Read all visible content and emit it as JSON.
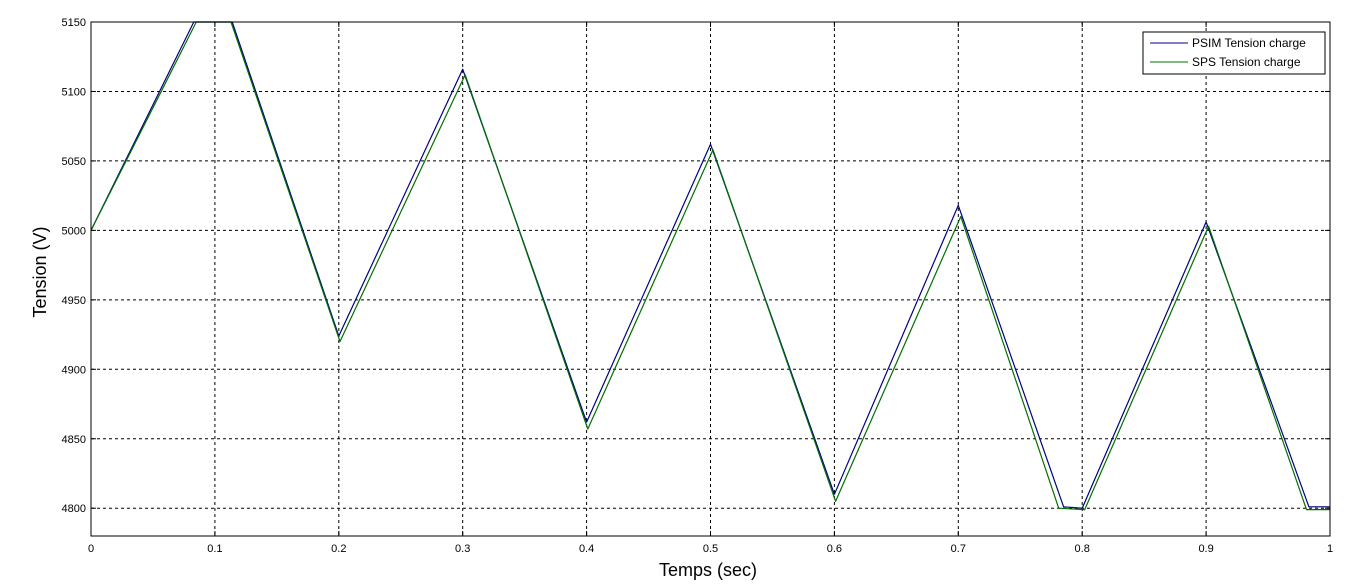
{
  "chart_data": {
    "type": "line",
    "title": "",
    "xlabel": "Temps (sec)",
    "ylabel": "Tension (V)",
    "xlim": [
      0,
      1
    ],
    "ylim": [
      4780,
      5150
    ],
    "xticks": [
      0,
      0.1,
      0.2,
      0.3,
      0.4,
      0.5,
      0.6,
      0.7,
      0.8,
      0.9,
      1
    ],
    "xtick_labels": [
      "0",
      "0.1",
      "0.2",
      "0.3",
      "0.4",
      "0.5",
      "0.6",
      "0.7",
      "0.8",
      "0.9",
      "1"
    ],
    "yticks": [
      4800,
      4850,
      4900,
      4950,
      5000,
      5050,
      5100,
      5150
    ],
    "ytick_labels": [
      "4800",
      "4850",
      "4900",
      "4950",
      "5000",
      "5050",
      "5100",
      "5150"
    ],
    "grid": true,
    "legend_position": "top-right",
    "series": [
      {
        "name": "PSIM Tension charge",
        "color": "#000080",
        "x": [
          0,
          0.083,
          0.114,
          0.2,
          0.3,
          0.4,
          0.5,
          0.6,
          0.7,
          0.785,
          0.8,
          0.9,
          0.983,
          1.0
        ],
        "y": [
          5000,
          5150,
          5150,
          4924,
          5116,
          4862,
          5062,
          4810,
          5018,
          4801,
          4800,
          5006,
          4801,
          4801
        ]
      },
      {
        "name": "SPS Tension charge",
        "color": "#007000",
        "x": [
          0,
          0.085,
          0.113,
          0.201,
          0.302,
          0.401,
          0.502,
          0.601,
          0.702,
          0.781,
          0.802,
          0.902,
          0.981,
          1.0
        ],
        "y": [
          5000,
          5150,
          5150,
          4920,
          5112,
          4857,
          5058,
          4805,
          5010,
          4800,
          4799,
          5003,
          4799,
          4799
        ]
      }
    ]
  }
}
